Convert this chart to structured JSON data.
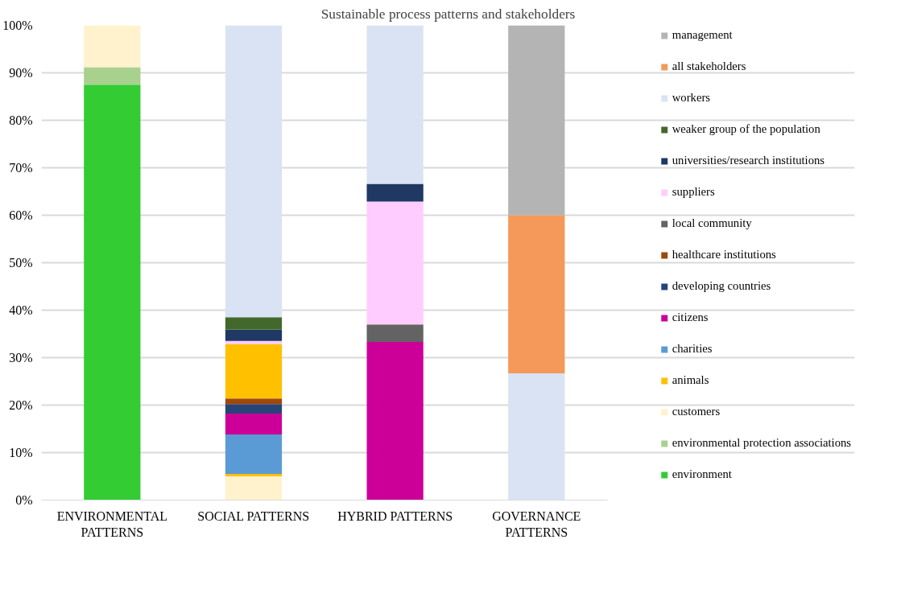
{
  "chart_data": {
    "type": "bar",
    "stacked": true,
    "title": "Sustainable process patterns and stakeholders",
    "categories": [
      "ENVIRONMENTAL PATTERNS",
      "SOCIAL PATTERNS",
      "HYBRID PATTERNS",
      "GOVERNANCE PATTERNS"
    ],
    "series": [
      {
        "name": "environment",
        "color": "#33cc33",
        "values": [
          87.5,
          0,
          0,
          0
        ]
      },
      {
        "name": "environmental protection associations",
        "color": "#a9d18e",
        "values": [
          3.7,
          0,
          0,
          0
        ]
      },
      {
        "name": "customers",
        "color": "#fff2cc",
        "values": [
          8.8,
          5.0,
          0,
          0
        ]
      },
      {
        "name": "animals",
        "color": "#ffc000",
        "values": [
          0,
          0.5,
          0,
          0
        ]
      },
      {
        "name": "charities",
        "color": "#5b9bd5",
        "values": [
          0,
          8.3,
          0,
          0
        ]
      },
      {
        "name": "citizens",
        "color": "#cc0099",
        "values": [
          0,
          4.4,
          33.3,
          0
        ]
      },
      {
        "name": "developing countries",
        "color": "#264478",
        "values": [
          0,
          2.0,
          0,
          0
        ]
      },
      {
        "name": "healthcare institutions",
        "color": "#9e480e",
        "values": [
          0,
          1.2,
          0,
          0
        ]
      },
      {
        "color": "#ffc000",
        "values": [
          0,
          11.5,
          0,
          0
        ]
      },
      {
        "name": "local community",
        "color": "#636363",
        "values": [
          0,
          0,
          3.7,
          0
        ]
      },
      {
        "name": "suppliers",
        "color": "#ffccff",
        "values": [
          0,
          0.6,
          25.9,
          0
        ]
      },
      {
        "name": "universities/research institutions",
        "color": "#1f3864",
        "values": [
          0,
          2.4,
          3.7,
          0
        ]
      },
      {
        "name": "weaker group of the population",
        "color": "#43682b",
        "values": [
          0,
          2.6,
          0,
          0
        ]
      },
      {
        "name": "workers",
        "color": "#dae3f3",
        "values": [
          0,
          61.5,
          33.4,
          26.7
        ]
      },
      {
        "name": "all stakeholders",
        "color": "#f4995a",
        "values": [
          0,
          0,
          0,
          33.3
        ]
      },
      {
        "name": "management",
        "color": "#b4b4b4",
        "values": [
          0,
          0,
          0,
          40.0
        ]
      }
    ],
    "ylim": [
      0,
      100
    ],
    "yticks": [
      {
        "value": 0,
        "label": "0%"
      },
      {
        "value": 10,
        "label": "10%"
      },
      {
        "value": 20,
        "label": "20%"
      },
      {
        "value": 30,
        "label": "30%"
      },
      {
        "value": 40,
        "label": "40%"
      },
      {
        "value": 50,
        "label": "50%"
      },
      {
        "value": 60,
        "label": "60%"
      },
      {
        "value": 70,
        "label": "70%"
      },
      {
        "value": 80,
        "label": "80%"
      },
      {
        "value": 90,
        "label": "90%"
      },
      {
        "value": 100,
        "label": "100%"
      }
    ],
    "grid": "y",
    "legend": "right"
  }
}
